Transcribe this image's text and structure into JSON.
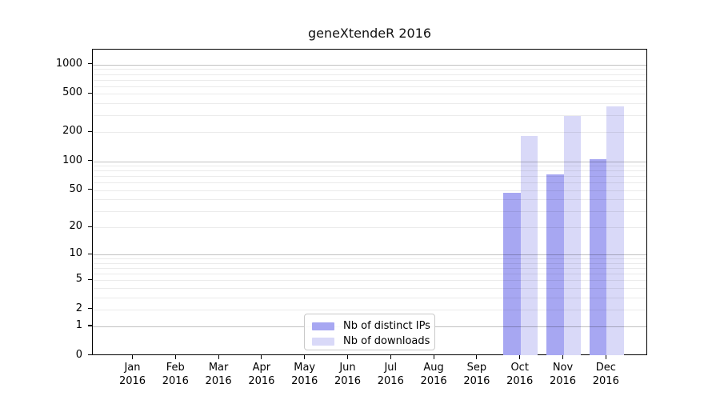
{
  "title": "geneXtendeR 2016",
  "legend": {
    "items": [
      {
        "label": "Nb of distinct IPs",
        "color": "#a7a7f2"
      },
      {
        "label": "Nb of downloads",
        "color": "#d9d9f8"
      }
    ]
  },
  "y_axis": {
    "ticks": [
      {
        "label": "1000",
        "value": 1000
      },
      {
        "label": "500",
        "value": 500
      },
      {
        "label": "200",
        "value": 200
      },
      {
        "label": "100",
        "value": 100
      },
      {
        "label": "50",
        "value": 50
      },
      {
        "label": "20",
        "value": 20
      },
      {
        "label": "10",
        "value": 10
      },
      {
        "label": "5",
        "value": 5
      },
      {
        "label": "2",
        "value": 2
      },
      {
        "label": "1",
        "value": 1
      },
      {
        "label": "0",
        "value": 0
      }
    ]
  },
  "x_axis": {
    "months": [
      {
        "label": "Jan",
        "year": "2016"
      },
      {
        "label": "Feb",
        "year": "2016"
      },
      {
        "label": "Mar",
        "year": "2016"
      },
      {
        "label": "Apr",
        "year": "2016"
      },
      {
        "label": "May",
        "year": "2016"
      },
      {
        "label": "Jun",
        "year": "2016"
      },
      {
        "label": "Jul",
        "year": "2016"
      },
      {
        "label": "Aug",
        "year": "2016"
      },
      {
        "label": "Sep",
        "year": "2016"
      },
      {
        "label": "Oct",
        "year": "2016"
      },
      {
        "label": "Nov",
        "year": "2016"
      },
      {
        "label": "Dec",
        "year": "2016"
      }
    ]
  },
  "chart_data": {
    "type": "bar",
    "title": "geneXtendeR 2016",
    "categories": [
      "Jan 2016",
      "Feb 2016",
      "Mar 2016",
      "Apr 2016",
      "May 2016",
      "Jun 2016",
      "Jul 2016",
      "Aug 2016",
      "Sep 2016",
      "Oct 2016",
      "Nov 2016",
      "Dec 2016"
    ],
    "series": [
      {
        "name": "Nb of distinct IPs",
        "color": "#a7a7f2",
        "values": [
          0,
          0,
          0,
          0,
          0,
          0,
          0,
          0,
          0,
          47,
          73,
          106
        ]
      },
      {
        "name": "Nb of downloads",
        "color": "#d9d9f8",
        "values": [
          0,
          0,
          0,
          0,
          0,
          0,
          0,
          0,
          0,
          182,
          294,
          371
        ]
      }
    ],
    "y_scale": "log10(1+x)",
    "ylim": [
      0,
      1430
    ],
    "yticks": [
      0,
      1,
      2,
      5,
      10,
      20,
      50,
      100,
      200,
      500,
      1000
    ],
    "grid": {
      "horizontal": true,
      "major_values": [
        1,
        10,
        100,
        1000
      ],
      "minor_values": [
        2,
        3,
        4,
        5,
        6,
        7,
        8,
        9,
        20,
        30,
        40,
        50,
        60,
        70,
        80,
        90,
        200,
        300,
        400,
        500,
        600,
        700,
        800,
        900
      ]
    },
    "legend_position": "inside-bottom-center"
  },
  "colors": {
    "bar_distinct_ips": "#a7a7f2",
    "bar_downloads": "#d9d9f8",
    "grid_minor": "rgba(0,0,0,0.08)",
    "grid_major": "rgba(0,0,0,0.24)",
    "axis": "#000000",
    "background": "#ffffff",
    "legend_border": "#c9c9c9"
  }
}
